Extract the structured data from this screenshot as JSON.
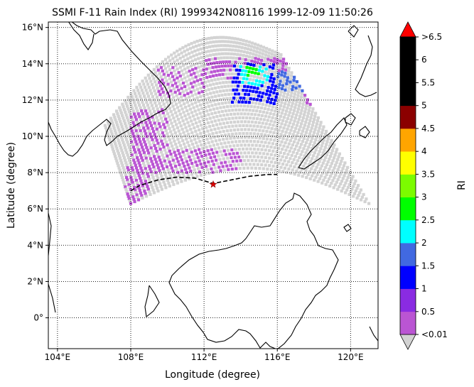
{
  "title": "SSMI F-11 Rain Index (RI) 1999342N08116 1999-12-09 11:50:26",
  "xlabel": "Longitude (degree)",
  "ylabel": "Latitude (degree)",
  "colorbar_label": "RI",
  "x_ticks": [
    {
      "value": 104,
      "label": "104°E"
    },
    {
      "value": 108,
      "label": "108°E"
    },
    {
      "value": 112,
      "label": "112°E"
    },
    {
      "value": 116,
      "label": "116°E"
    },
    {
      "value": 120,
      "label": "120°E"
    }
  ],
  "y_ticks": [
    {
      "value": 0,
      "label": "0°"
    },
    {
      "value": 2,
      "label": "2°N"
    },
    {
      "value": 4,
      "label": "4°N"
    },
    {
      "value": 6,
      "label": "6°N"
    },
    {
      "value": 8,
      "label": "8°N"
    },
    {
      "value": 10,
      "label": "10°N"
    },
    {
      "value": 12,
      "label": "12°N"
    },
    {
      "value": 14,
      "label": "14°N"
    },
    {
      "value": 16,
      "label": "16°N"
    }
  ],
  "chart_data": {
    "type": "map",
    "projection": "plate-carree",
    "xlim": [
      103.5,
      121.5
    ],
    "ylim": [
      -1.7,
      16.3
    ],
    "grid": true,
    "storm_center": {
      "lon": 112.5,
      "lat": 7.35
    },
    "track": [
      [
        108.0,
        7.0
      ],
      [
        108.5,
        7.3
      ],
      [
        109.5,
        7.6
      ],
      [
        110.5,
        7.75
      ],
      [
        111.5,
        7.7
      ],
      [
        112.5,
        7.4
      ],
      [
        113.5,
        7.6
      ],
      [
        114.5,
        7.8
      ],
      [
        115.5,
        7.9
      ],
      [
        116.0,
        7.9
      ]
    ],
    "colorbar": {
      "boundaries": [
        "<0.01",
        "0.5",
        "1",
        "1.5",
        "2",
        "2.5",
        "3",
        "3.5",
        "4",
        "4.5",
        "5",
        "5.5",
        "6",
        ">6.5"
      ],
      "colors": [
        "#ba55d3",
        "#8a2be2",
        "#0000ff",
        "#4169e1",
        "#00ffff",
        "#00ff00",
        "#7cfc00",
        "#ffff00",
        "#ffa500",
        "#8b0000",
        "#000000",
        "#000000",
        "#000000"
      ],
      "under_color": "#d3d3d3",
      "over_color": "#ff0000"
    },
    "swath": {
      "no_rain_color": "#d3d3d3",
      "rain_regions": [
        {
          "lon_range": [
            109.5,
            112.0
          ],
          "lat_range": [
            12.2,
            13.8
          ],
          "ri": 0.3
        },
        {
          "lon_range": [
            112.0,
            116.5
          ],
          "lat_range": [
            13.2,
            14.3
          ],
          "ri": 0.3
        },
        {
          "lon_range": [
            113.5,
            116.0
          ],
          "lat_range": [
            11.8,
            14.0
          ],
          "ri": 1.2
        },
        {
          "lon_range": [
            114.0,
            115.5
          ],
          "lat_range": [
            12.8,
            13.9
          ],
          "ri": 2.2
        },
        {
          "lon_range": [
            114.3,
            115.0
          ],
          "lat_range": [
            13.3,
            13.9
          ],
          "ri": 2.7
        },
        {
          "lon_range": [
            116.0,
            117.5
          ],
          "lat_range": [
            12.5,
            13.6
          ],
          "ri": 1.8
        },
        {
          "lon_range": [
            117.5,
            119.5
          ],
          "lat_range": [
            11.7,
            12.5
          ],
          "ri": 0.3
        },
        {
          "lon_range": [
            108.0,
            110.0
          ],
          "lat_range": [
            8.0,
            11.5
          ],
          "ri": 0.3
        },
        {
          "lon_range": [
            107.7,
            109.0
          ],
          "lat_range": [
            6.2,
            8.3
          ],
          "ri": 0.3
        },
        {
          "lon_range": [
            109.5,
            114.0
          ],
          "lat_range": [
            8.0,
            9.3
          ],
          "ri": 0.3
        }
      ]
    }
  }
}
